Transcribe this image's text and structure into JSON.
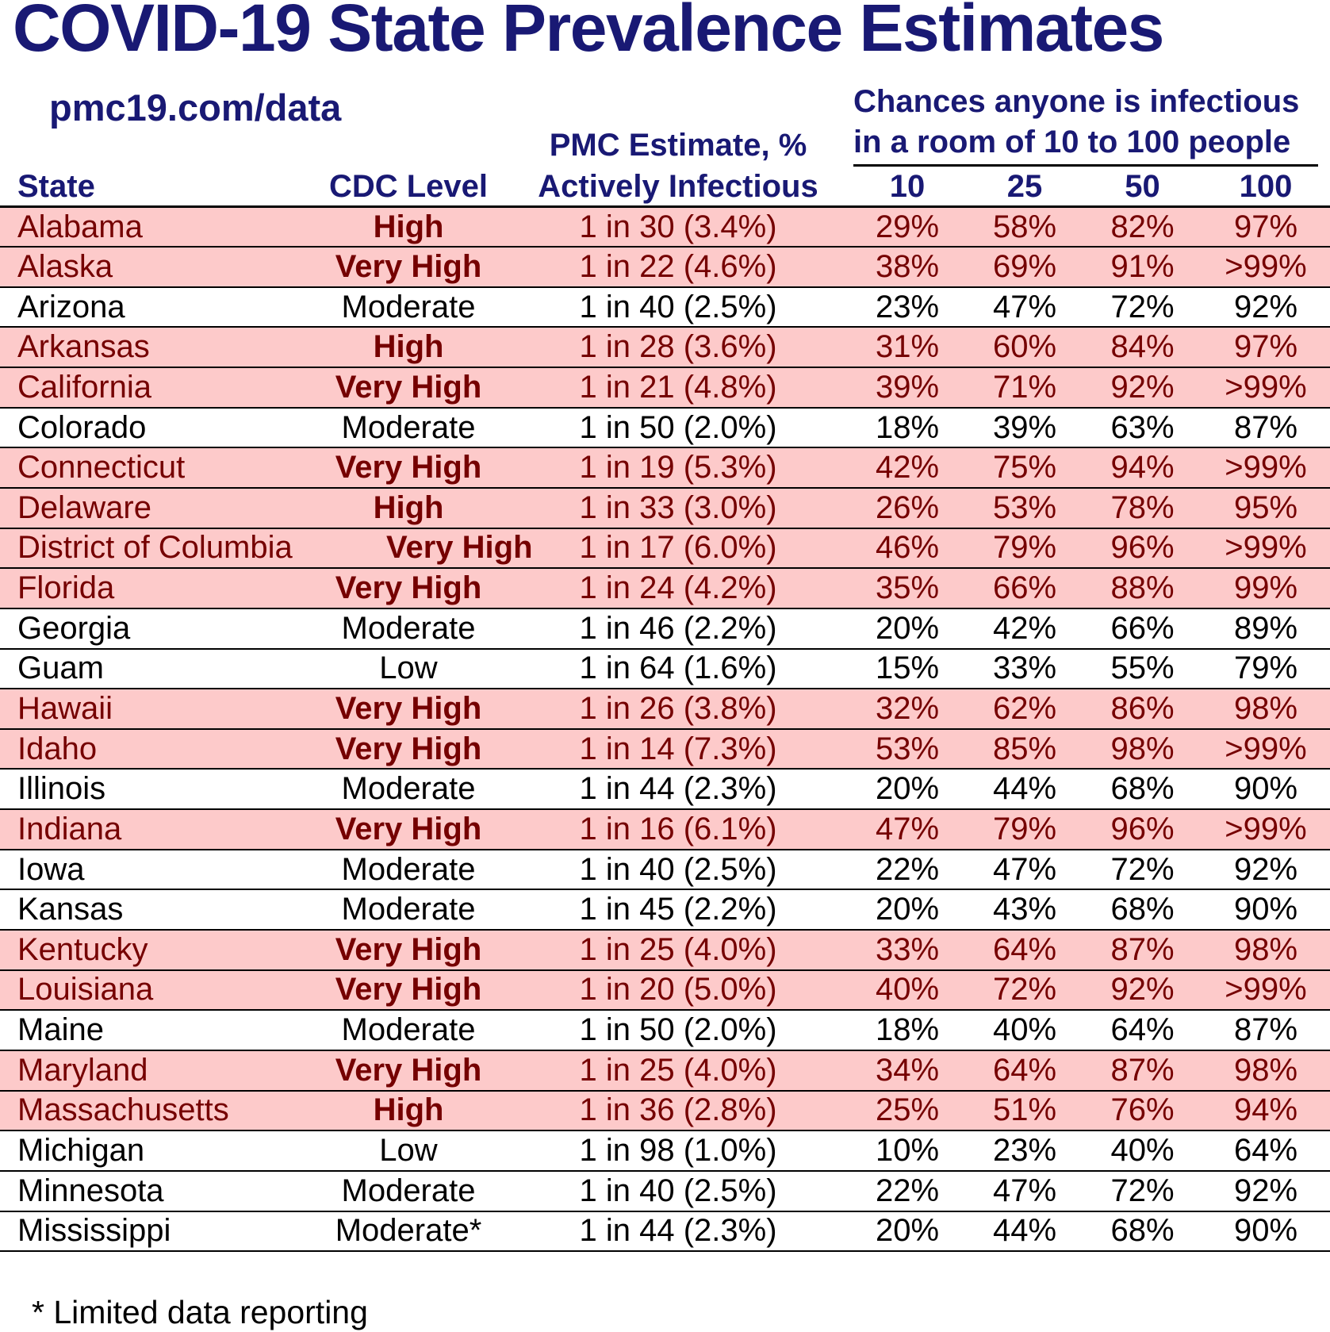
{
  "title": "COVID-19 State Prevalence Estimates",
  "link": "pmc19.com/data",
  "room_header": {
    "line1": "Chances anyone is infectious",
    "line2": "in a room of 10 to 100 people"
  },
  "pmc_header_line1": "PMC Estimate, %",
  "columns": {
    "state": "State",
    "cdc_level": "CDC Level",
    "actively_infectious": "Actively Infectious",
    "room_sizes": [
      "10",
      "25",
      "50",
      "100"
    ]
  },
  "footnote": "* Limited data reporting",
  "colors": {
    "navy": "#191974",
    "maroon": "#750000",
    "row_highlight": "#fdcaca",
    "line": "#000000"
  },
  "chart_data": {
    "type": "table",
    "title": "COVID-19 State Prevalence Estimates",
    "subtitle": "pmc19.com/data",
    "column_group_header": "Chances anyone is infectious in a room of 10 to 100 people",
    "columns": [
      "State",
      "CDC Level",
      "PMC Estimate, % Actively Infectious",
      "10",
      "25",
      "50",
      "100"
    ],
    "rows": [
      {
        "state": "Alabama",
        "cdc_level": "High",
        "pmc_estimate": "1 in 30 (3.4%)",
        "p10": "29%",
        "p25": "58%",
        "p50": "82%",
        "p100": "97%",
        "highlighted": true
      },
      {
        "state": "Alaska",
        "cdc_level": "Very High",
        "pmc_estimate": "1 in 22 (4.6%)",
        "p10": "38%",
        "p25": "69%",
        "p50": "91%",
        "p100": ">99%",
        "highlighted": true
      },
      {
        "state": "Arizona",
        "cdc_level": "Moderate",
        "pmc_estimate": "1 in 40 (2.5%)",
        "p10": "23%",
        "p25": "47%",
        "p50": "72%",
        "p100": "92%",
        "highlighted": false
      },
      {
        "state": "Arkansas",
        "cdc_level": "High",
        "pmc_estimate": "1 in 28 (3.6%)",
        "p10": "31%",
        "p25": "60%",
        "p50": "84%",
        "p100": "97%",
        "highlighted": true
      },
      {
        "state": "California",
        "cdc_level": "Very High",
        "pmc_estimate": "1 in 21 (4.8%)",
        "p10": "39%",
        "p25": "71%",
        "p50": "92%",
        "p100": ">99%",
        "highlighted": true
      },
      {
        "state": "Colorado",
        "cdc_level": "Moderate",
        "pmc_estimate": "1 in 50 (2.0%)",
        "p10": "18%",
        "p25": "39%",
        "p50": "63%",
        "p100": "87%",
        "highlighted": false
      },
      {
        "state": "Connecticut",
        "cdc_level": "Very High",
        "pmc_estimate": "1 in 19 (5.3%)",
        "p10": "42%",
        "p25": "75%",
        "p50": "94%",
        "p100": ">99%",
        "highlighted": true
      },
      {
        "state": "Delaware",
        "cdc_level": "High",
        "pmc_estimate": "1 in 33 (3.0%)",
        "p10": "26%",
        "p25": "53%",
        "p50": "78%",
        "p100": "95%",
        "highlighted": true
      },
      {
        "state": "District of Columbia",
        "cdc_level": "Very High",
        "pmc_estimate": "1 in 17 (6.0%)",
        "p10": "46%",
        "p25": "79%",
        "p50": "96%",
        "p100": ">99%",
        "highlighted": true
      },
      {
        "state": "Florida",
        "cdc_level": "Very High",
        "pmc_estimate": "1 in 24 (4.2%)",
        "p10": "35%",
        "p25": "66%",
        "p50": "88%",
        "p100": "99%",
        "highlighted": true
      },
      {
        "state": "Georgia",
        "cdc_level": "Moderate",
        "pmc_estimate": "1 in 46 (2.2%)",
        "p10": "20%",
        "p25": "42%",
        "p50": "66%",
        "p100": "89%",
        "highlighted": false
      },
      {
        "state": "Guam",
        "cdc_level": "Low",
        "pmc_estimate": "1 in 64 (1.6%)",
        "p10": "15%",
        "p25": "33%",
        "p50": "55%",
        "p100": "79%",
        "highlighted": false
      },
      {
        "state": "Hawaii",
        "cdc_level": "Very High",
        "pmc_estimate": "1 in 26 (3.8%)",
        "p10": "32%",
        "p25": "62%",
        "p50": "86%",
        "p100": "98%",
        "highlighted": true
      },
      {
        "state": "Idaho",
        "cdc_level": "Very High",
        "pmc_estimate": "1 in 14 (7.3%)",
        "p10": "53%",
        "p25": "85%",
        "p50": "98%",
        "p100": ">99%",
        "highlighted": true
      },
      {
        "state": "Illinois",
        "cdc_level": "Moderate",
        "pmc_estimate": "1 in 44 (2.3%)",
        "p10": "20%",
        "p25": "44%",
        "p50": "68%",
        "p100": "90%",
        "highlighted": false
      },
      {
        "state": "Indiana",
        "cdc_level": "Very High",
        "pmc_estimate": "1 in 16 (6.1%)",
        "p10": "47%",
        "p25": "79%",
        "p50": "96%",
        "p100": ">99%",
        "highlighted": true
      },
      {
        "state": "Iowa",
        "cdc_level": "Moderate",
        "pmc_estimate": "1 in 40 (2.5%)",
        "p10": "22%",
        "p25": "47%",
        "p50": "72%",
        "p100": "92%",
        "highlighted": false
      },
      {
        "state": "Kansas",
        "cdc_level": "Moderate",
        "pmc_estimate": "1 in 45 (2.2%)",
        "p10": "20%",
        "p25": "43%",
        "p50": "68%",
        "p100": "90%",
        "highlighted": false
      },
      {
        "state": "Kentucky",
        "cdc_level": "Very High",
        "pmc_estimate": "1 in 25 (4.0%)",
        "p10": "33%",
        "p25": "64%",
        "p50": "87%",
        "p100": "98%",
        "highlighted": true
      },
      {
        "state": "Louisiana",
        "cdc_level": "Very High",
        "pmc_estimate": "1 in 20 (5.0%)",
        "p10": "40%",
        "p25": "72%",
        "p50": "92%",
        "p100": ">99%",
        "highlighted": true
      },
      {
        "state": "Maine",
        "cdc_level": "Moderate",
        "pmc_estimate": "1 in 50 (2.0%)",
        "p10": "18%",
        "p25": "40%",
        "p50": "64%",
        "p100": "87%",
        "highlighted": false
      },
      {
        "state": "Maryland",
        "cdc_level": "Very High",
        "pmc_estimate": "1 in 25 (4.0%)",
        "p10": "34%",
        "p25": "64%",
        "p50": "87%",
        "p100": "98%",
        "highlighted": true
      },
      {
        "state": "Massachusetts",
        "cdc_level": "High",
        "pmc_estimate": "1 in 36 (2.8%)",
        "p10": "25%",
        "p25": "51%",
        "p50": "76%",
        "p100": "94%",
        "highlighted": true
      },
      {
        "state": "Michigan",
        "cdc_level": "Low",
        "pmc_estimate": "1 in 98 (1.0%)",
        "p10": "10%",
        "p25": "23%",
        "p50": "40%",
        "p100": "64%",
        "highlighted": false
      },
      {
        "state": "Minnesota",
        "cdc_level": "Moderate",
        "pmc_estimate": "1 in 40 (2.5%)",
        "p10": "22%",
        "p25": "47%",
        "p50": "72%",
        "p100": "92%",
        "highlighted": false
      },
      {
        "state": "Mississippi",
        "cdc_level": "Moderate*",
        "pmc_estimate": "1 in 44 (2.3%)",
        "p10": "20%",
        "p25": "44%",
        "p50": "68%",
        "p100": "90%",
        "highlighted": false
      }
    ]
  }
}
